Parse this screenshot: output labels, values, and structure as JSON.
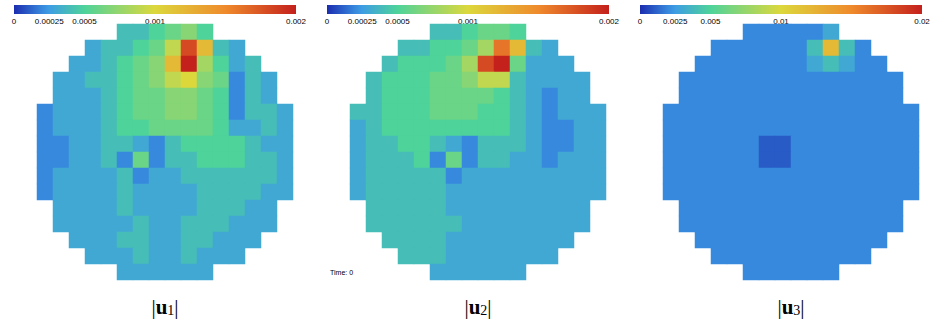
{
  "chart_data": [
    {
      "type": "heatmap",
      "title": "|u1|",
      "tick_labels": false,
      "colorbar": {
        "range": [
          0,
          0.002
        ],
        "ticks": [
          0,
          0.00025,
          0.0005,
          0.001,
          0.002
        ]
      },
      "cells": [
        [
          null,
          null,
          null,
          null,
          null,
          0.0004,
          0.0004,
          0.0005,
          0.0006,
          0.0007,
          0.0005,
          null,
          null,
          null,
          null,
          null
        ],
        [
          null,
          null,
          null,
          0.0003,
          0.0004,
          0.0004,
          0.0005,
          0.0006,
          0.0009,
          0.0018,
          0.0012,
          0.0004,
          0.0003,
          null,
          null,
          null
        ],
        [
          null,
          null,
          0.0003,
          0.0003,
          0.0004,
          0.0005,
          0.0006,
          0.0007,
          0.0012,
          0.002,
          0.0008,
          0.0005,
          0.0003,
          0.0004,
          null,
          null
        ],
        [
          null,
          0.0003,
          0.0003,
          0.0004,
          0.0004,
          0.0005,
          0.0006,
          0.0007,
          0.0009,
          0.001,
          0.0007,
          0.0006,
          0.0002,
          0.0004,
          0.0003,
          null
        ],
        [
          null,
          0.0003,
          0.0003,
          0.0003,
          0.0004,
          0.0005,
          0.0006,
          0.0006,
          0.0007,
          0.0007,
          0.0006,
          0.0005,
          0.0002,
          0.0004,
          0.0003,
          null
        ],
        [
          0.0002,
          0.0003,
          0.0003,
          0.0003,
          0.0004,
          0.0005,
          0.0006,
          0.0006,
          0.0007,
          0.0007,
          0.0006,
          0.0005,
          0.0002,
          0.0004,
          0.0004,
          0.0003
        ],
        [
          0.0002,
          0.0003,
          0.0003,
          0.0003,
          0.0004,
          0.0005,
          0.0005,
          0.0006,
          0.0006,
          0.0006,
          0.0006,
          0.0005,
          0.0003,
          0.0003,
          0.0004,
          0.0003
        ],
        [
          0.0002,
          0.0002,
          0.0003,
          0.0003,
          0.0004,
          0.0004,
          0.0003,
          0.0002,
          0.0004,
          0.0005,
          0.0005,
          0.0005,
          0.0005,
          0.0004,
          0.0003,
          0.0003
        ],
        [
          0.0002,
          0.0002,
          0.0003,
          0.0003,
          0.0004,
          0.0002,
          0.0006,
          0.0002,
          0.0004,
          0.0004,
          0.0005,
          0.0005,
          0.0005,
          0.0004,
          0.0004,
          0.0003
        ],
        [
          0.0002,
          0.0003,
          0.0003,
          0.0003,
          0.0003,
          0.0004,
          0.0002,
          0.0003,
          0.0003,
          0.0004,
          0.0004,
          0.0004,
          0.0004,
          0.0004,
          0.0004,
          0.0003
        ],
        [
          0.0002,
          0.0003,
          0.0003,
          0.0003,
          0.0003,
          0.0004,
          0.0003,
          0.0003,
          0.0003,
          0.0003,
          0.0004,
          0.0004,
          0.0004,
          0.0004,
          0.0003,
          0.0003
        ],
        [
          null,
          0.0003,
          0.0003,
          0.0003,
          0.0003,
          0.0004,
          0.0003,
          0.0003,
          0.0003,
          0.0003,
          0.0004,
          0.0004,
          0.0004,
          0.0003,
          0.0003,
          null
        ],
        [
          null,
          0.0003,
          0.0003,
          0.0003,
          0.0003,
          0.0003,
          0.0004,
          0.0003,
          0.0003,
          0.0004,
          0.0004,
          0.0004,
          0.0003,
          0.0003,
          0.0003,
          null
        ],
        [
          null,
          null,
          0.0003,
          0.0003,
          0.0003,
          0.0004,
          0.0004,
          0.0003,
          0.0003,
          0.0004,
          0.0004,
          0.0003,
          0.0003,
          0.0003,
          null,
          null
        ],
        [
          null,
          null,
          null,
          0.0003,
          0.0003,
          0.0003,
          0.0004,
          0.0003,
          0.0003,
          0.0004,
          0.0003,
          0.0003,
          0.0003,
          null,
          null,
          null
        ],
        [
          null,
          null,
          null,
          null,
          null,
          0.0003,
          0.0003,
          0.0003,
          0.0003,
          0.0003,
          0.0003,
          null,
          null,
          null,
          null,
          null
        ]
      ]
    },
    {
      "type": "heatmap",
      "title": "|u2|",
      "tick_labels": false,
      "annotations": [
        "Time: 0"
      ],
      "colorbar": {
        "range": [
          0,
          0.002
        ],
        "ticks": [
          0,
          0.00025,
          0.0005,
          0.001,
          0.002
        ]
      },
      "cells": [
        [
          null,
          null,
          null,
          null,
          null,
          0.0004,
          0.0004,
          0.0005,
          0.0006,
          0.0006,
          0.0005,
          null,
          null,
          null,
          null,
          null
        ],
        [
          null,
          null,
          null,
          0.0004,
          0.0004,
          0.0005,
          0.0005,
          0.0006,
          0.0008,
          0.0016,
          0.0012,
          0.0004,
          0.0003,
          null,
          null,
          null
        ],
        [
          null,
          null,
          0.0004,
          0.0005,
          0.0005,
          0.0005,
          0.0006,
          0.0008,
          0.0018,
          0.002,
          0.0006,
          0.0003,
          0.0003,
          0.0003,
          null,
          null
        ],
        [
          null,
          0.0004,
          0.0005,
          0.0005,
          0.0005,
          0.0006,
          0.0006,
          0.0007,
          0.0009,
          0.0009,
          0.0004,
          0.0003,
          0.0003,
          0.0003,
          0.0003,
          null
        ],
        [
          null,
          0.0004,
          0.0005,
          0.0005,
          0.0005,
          0.0006,
          0.0006,
          0.0006,
          0.0006,
          0.0005,
          0.0004,
          0.0003,
          0.0002,
          0.0003,
          0.0003,
          null
        ],
        [
          0.0004,
          0.0004,
          0.0005,
          0.0005,
          0.0005,
          0.0006,
          0.0006,
          0.0006,
          0.0005,
          0.0005,
          0.0004,
          0.0003,
          0.0002,
          0.0003,
          0.0003,
          0.0003
        ],
        [
          0.0003,
          0.0004,
          0.0005,
          0.0005,
          0.0005,
          0.0005,
          0.0005,
          0.0005,
          0.0005,
          0.0005,
          0.0004,
          0.0003,
          0.0002,
          0.0002,
          0.0003,
          0.0003
        ],
        [
          0.0003,
          0.0004,
          0.0004,
          0.0005,
          0.0005,
          0.0004,
          0.0003,
          0.0002,
          0.0004,
          0.0004,
          0.0004,
          0.0003,
          0.0002,
          0.0002,
          0.0003,
          0.0003
        ],
        [
          0.0003,
          0.0004,
          0.0004,
          0.0004,
          0.0005,
          0.0002,
          0.0006,
          0.0002,
          0.0004,
          0.0004,
          0.0003,
          0.0003,
          0.0002,
          0.0003,
          0.0003,
          0.0003
        ],
        [
          0.0003,
          0.0004,
          0.0004,
          0.0004,
          0.0004,
          0.0004,
          0.0002,
          0.0003,
          0.0003,
          0.0003,
          0.0003,
          0.0003,
          0.0003,
          0.0003,
          0.0003,
          0.0003
        ],
        [
          0.0003,
          0.0004,
          0.0004,
          0.0004,
          0.0004,
          0.0004,
          0.0003,
          0.0003,
          0.0003,
          0.0003,
          0.0003,
          0.0003,
          0.0003,
          0.0003,
          0.0003,
          0.0003
        ],
        [
          null,
          0.0004,
          0.0004,
          0.0004,
          0.0004,
          0.0004,
          0.0003,
          0.0003,
          0.0003,
          0.0003,
          0.0003,
          0.0003,
          0.0003,
          0.0003,
          0.0003,
          null
        ],
        [
          null,
          0.0004,
          0.0004,
          0.0004,
          0.0004,
          0.0004,
          0.0004,
          0.0003,
          0.0003,
          0.0003,
          0.0003,
          0.0003,
          0.0003,
          0.0003,
          0.0003,
          null
        ],
        [
          null,
          null,
          0.0004,
          0.0004,
          0.0004,
          0.0004,
          0.0003,
          0.0003,
          0.0003,
          0.0003,
          0.0003,
          0.0003,
          0.0003,
          0.0003,
          null,
          null
        ],
        [
          null,
          null,
          null,
          0.0004,
          0.0004,
          0.0004,
          0.0003,
          0.0003,
          0.0003,
          0.0003,
          0.0003,
          0.0003,
          0.0003,
          null,
          null,
          null
        ],
        [
          null,
          null,
          null,
          null,
          null,
          0.0003,
          0.0003,
          0.0003,
          0.0003,
          0.0003,
          0.0003,
          null,
          null,
          null,
          null,
          null
        ]
      ]
    },
    {
      "type": "heatmap",
      "title": "|u3|",
      "tick_labels": false,
      "colorbar": {
        "range": [
          0,
          0.02
        ],
        "ticks": [
          0,
          0.0025,
          0.005,
          0.01,
          0.02
        ]
      },
      "cells": [
        [
          null,
          null,
          null,
          null,
          null,
          0.002,
          0.002,
          0.002,
          0.002,
          0.002,
          0.003,
          null,
          null,
          null,
          null,
          null
        ],
        [
          null,
          null,
          null,
          0.002,
          0.002,
          0.002,
          0.002,
          0.002,
          0.002,
          0.004,
          0.012,
          0.004,
          0.002,
          null,
          null,
          null
        ],
        [
          null,
          null,
          0.002,
          0.002,
          0.002,
          0.002,
          0.002,
          0.002,
          0.002,
          0.003,
          0.004,
          0.003,
          0.002,
          0.002,
          null,
          null
        ],
        [
          null,
          0.002,
          0.002,
          0.002,
          0.002,
          0.002,
          0.002,
          0.002,
          0.002,
          0.002,
          0.002,
          0.002,
          0.002,
          0.002,
          0.002,
          null
        ],
        [
          null,
          0.002,
          0.002,
          0.002,
          0.002,
          0.002,
          0.002,
          0.002,
          0.002,
          0.002,
          0.002,
          0.002,
          0.002,
          0.002,
          0.002,
          null
        ],
        [
          0.002,
          0.002,
          0.002,
          0.002,
          0.002,
          0.002,
          0.002,
          0.002,
          0.002,
          0.002,
          0.002,
          0.002,
          0.002,
          0.002,
          0.002,
          0.002
        ],
        [
          0.002,
          0.002,
          0.002,
          0.002,
          0.002,
          0.002,
          0.002,
          0.002,
          0.002,
          0.002,
          0.002,
          0.002,
          0.002,
          0.002,
          0.002,
          0.002
        ],
        [
          0.002,
          0.002,
          0.002,
          0.002,
          0.002,
          0.002,
          0.001,
          0.001,
          0.002,
          0.002,
          0.002,
          0.002,
          0.002,
          0.002,
          0.002,
          0.002
        ],
        [
          0.002,
          0.002,
          0.002,
          0.002,
          0.002,
          0.002,
          0.001,
          0.001,
          0.002,
          0.002,
          0.002,
          0.002,
          0.002,
          0.002,
          0.002,
          0.002
        ],
        [
          0.002,
          0.002,
          0.002,
          0.002,
          0.002,
          0.002,
          0.002,
          0.002,
          0.002,
          0.002,
          0.002,
          0.002,
          0.002,
          0.002,
          0.002,
          0.002
        ],
        [
          0.002,
          0.002,
          0.002,
          0.002,
          0.002,
          0.002,
          0.002,
          0.002,
          0.002,
          0.002,
          0.002,
          0.002,
          0.002,
          0.002,
          0.002,
          0.002
        ],
        [
          null,
          0.002,
          0.002,
          0.002,
          0.002,
          0.002,
          0.002,
          0.002,
          0.002,
          0.002,
          0.002,
          0.002,
          0.002,
          0.002,
          0.002,
          null
        ],
        [
          null,
          0.002,
          0.002,
          0.002,
          0.002,
          0.002,
          0.002,
          0.002,
          0.002,
          0.002,
          0.002,
          0.002,
          0.002,
          0.002,
          0.002,
          null
        ],
        [
          null,
          null,
          0.002,
          0.002,
          0.002,
          0.002,
          0.002,
          0.002,
          0.002,
          0.002,
          0.002,
          0.002,
          0.002,
          0.002,
          null,
          null
        ],
        [
          null,
          null,
          null,
          0.002,
          0.002,
          0.002,
          0.002,
          0.002,
          0.002,
          0.002,
          0.002,
          0.002,
          0.002,
          null,
          null,
          null
        ],
        [
          null,
          null,
          null,
          null,
          null,
          0.002,
          0.002,
          0.002,
          0.002,
          0.002,
          0.002,
          null,
          null,
          null,
          null,
          null
        ]
      ]
    }
  ]
}
